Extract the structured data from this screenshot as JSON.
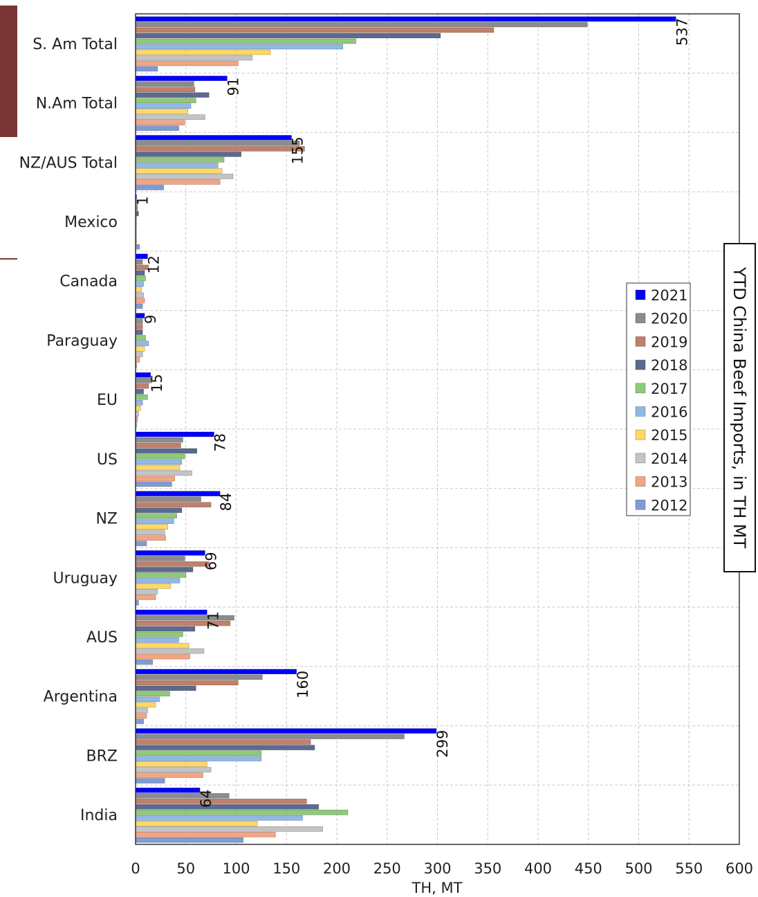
{
  "chart_data": {
    "type": "bar",
    "orientation": "horizontal",
    "title": "YTD China Beef Imports, in TH MT",
    "xlabel": "TH, MT",
    "ylabel": "",
    "xlim": [
      0,
      600
    ],
    "x_ticks": [
      0,
      50,
      100,
      150,
      200,
      250,
      300,
      350,
      400,
      450,
      500,
      550,
      600
    ],
    "grid": true,
    "legend_position": "right",
    "categories": [
      "S. Am Total",
      "N.Am Total",
      "NZ/AUS Total",
      "Mexico",
      "Canada",
      "Paraguay",
      "EU",
      "US",
      "NZ",
      "Uruguay",
      "AUS",
      "Argentina",
      "BRZ",
      "India"
    ],
    "series": [
      {
        "name": "2021",
        "color": "#0000ff",
        "values": [
          537,
          91,
          155,
          1,
          12,
          9,
          15,
          78,
          84,
          69,
          71,
          160,
          299,
          64
        ]
      },
      {
        "name": "2020",
        "color": "#8c8c8c",
        "values": [
          449,
          58,
          163,
          2,
          7,
          7,
          16,
          47,
          65,
          49,
          98,
          126,
          267,
          93
        ]
      },
      {
        "name": "2019",
        "color": "#c0806a",
        "values": [
          356,
          59,
          168,
          2,
          13,
          7,
          13,
          45,
          75,
          73,
          94,
          102,
          174,
          170
        ]
      },
      {
        "name": "2018",
        "color": "#5c6a8e",
        "values": [
          303,
          73,
          105,
          3,
          9,
          7,
          8,
          61,
          46,
          57,
          59,
          60,
          178,
          182
        ]
      },
      {
        "name": "2017",
        "color": "#8fc97a",
        "values": [
          219,
          60,
          88,
          1,
          10,
          10,
          12,
          49,
          41,
          50,
          47,
          34,
          125,
          211
        ]
      },
      {
        "name": "2016",
        "color": "#91b9e5",
        "values": [
          206,
          55,
          82,
          1,
          8,
          13,
          7,
          46,
          38,
          44,
          43,
          24,
          125,
          166
        ]
      },
      {
        "name": "2015",
        "color": "#ffd966",
        "values": [
          134,
          52,
          86,
          1,
          6,
          9,
          5,
          44,
          32,
          35,
          53,
          20,
          71,
          121
        ]
      },
      {
        "name": "2014",
        "color": "#c4c4c4",
        "values": [
          116,
          69,
          97,
          1,
          8,
          7,
          3,
          56,
          29,
          22,
          68,
          12,
          75,
          186
        ]
      },
      {
        "name": "2013",
        "color": "#f4a582",
        "values": [
          102,
          49,
          84,
          1,
          9,
          4,
          2,
          39,
          30,
          20,
          54,
          11,
          67,
          139
        ]
      },
      {
        "name": "2012",
        "color": "#7f9bd4",
        "values": [
          22,
          43,
          28,
          4,
          7,
          1,
          1,
          36,
          11,
          3,
          17,
          8,
          29,
          107
        ]
      }
    ],
    "data_labels": {
      "series": "2021",
      "values": [
        "537",
        "91",
        "155",
        "1",
        "12",
        "9",
        "15",
        "78",
        "84",
        "69",
        "71",
        "160",
        "299",
        "64"
      ]
    }
  }
}
